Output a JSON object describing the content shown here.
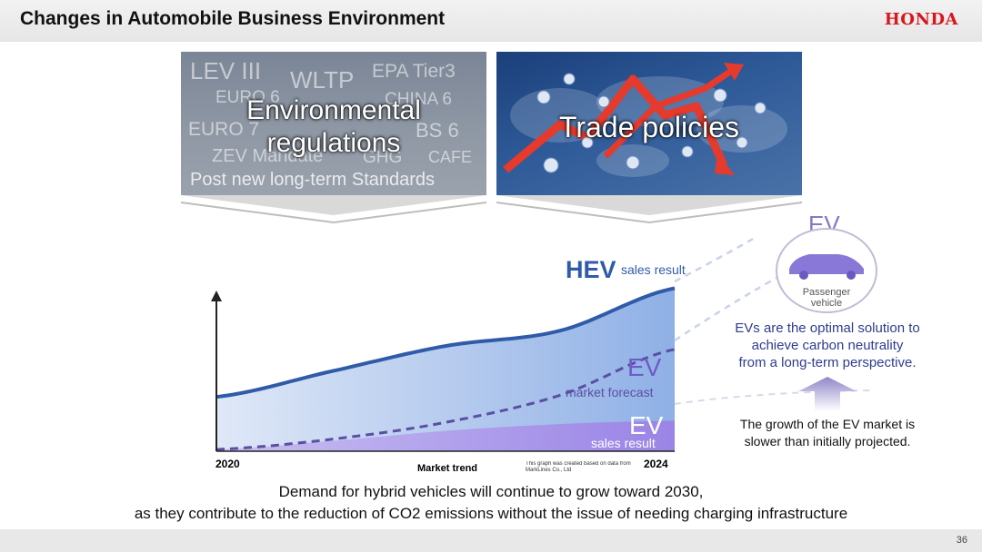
{
  "header": {
    "title": "Changes in Automobile Business Environment",
    "logo_text": "HONDA"
  },
  "panels": {
    "environmental": {
      "title_line1": "Environmental",
      "title_line2": "regulations",
      "bg_words": [
        "LEV III",
        "WLTP",
        "EPA Tier3",
        "EURO 6",
        "CHINA 6",
        "EURO 7",
        "BS 6",
        "ZEV Mandate",
        "GHG",
        "CAFE",
        "Post new long-term Standards"
      ]
    },
    "trade": {
      "title": "Trade policies"
    }
  },
  "chart_data": {
    "type": "area",
    "x": [
      2020,
      2021,
      2022,
      2023,
      2024
    ],
    "xlabel": "Market trend",
    "x_tick_labels": [
      "2020",
      "2024"
    ],
    "xlim": [
      2020,
      2024
    ],
    "ylim": [
      0,
      100
    ],
    "note": "This graph was created based on data from MarkLines Co., Ltd",
    "series": [
      {
        "name": "HEV",
        "label_sub": "sales result",
        "values": [
          32,
          47,
          62,
          71,
          96
        ],
        "color": "#2f5ba8",
        "fill": "#9fb9e3"
      },
      {
        "name": "EV",
        "label_sub": "market forecast",
        "values": [
          1,
          7,
          17,
          33,
          60
        ],
        "color": "#5a4fa3",
        "style": "dashed"
      },
      {
        "name": "EV",
        "label_sub": "sales result",
        "values": [
          1,
          6,
          12,
          16,
          18
        ],
        "color": "#9b86e0",
        "fill": "#a38ee8"
      }
    ]
  },
  "ev_side": {
    "heading": "EV",
    "vehicle_label": "Passenger vehicle",
    "statement_lines": [
      "EVs are the optimal solution to",
      "achieve carbon neutrality",
      "from a long-term perspective."
    ],
    "growth_lines": [
      "The growth of the EV market is",
      "slower than initially projected."
    ]
  },
  "footer": {
    "line1": "Demand for hybrid vehicles will continue to grow toward 2030,",
    "line2": "as they contribute to the reduction of CO2 emissions without the issue of needing charging infrastructure",
    "page_number": "36"
  },
  "colors": {
    "brand": "#d6171e",
    "hev": "#2f5ba8",
    "ev": "#6f5bc8",
    "text_blue": "#2e3d8f"
  }
}
